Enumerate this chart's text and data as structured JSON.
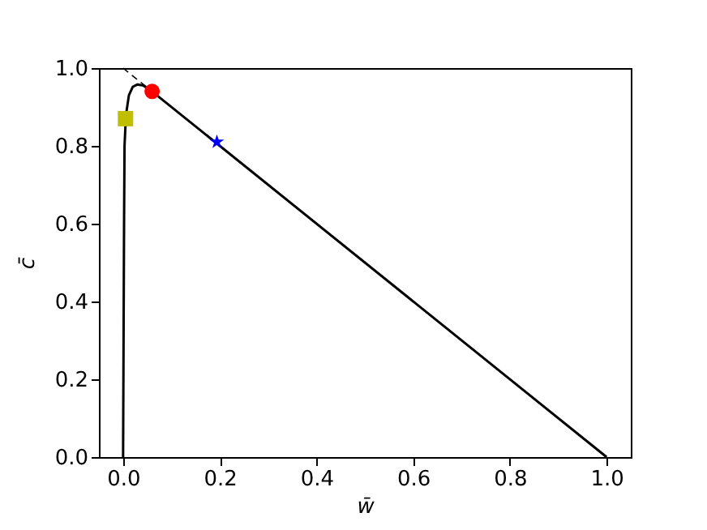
{
  "chart_data": {
    "type": "line",
    "xlabel": "w̄",
    "ylabel": "c̄",
    "xlim": [
      -0.05,
      1.05
    ],
    "ylim": [
      0,
      1.0
    ],
    "xticks": [
      {
        "value": 0,
        "label": "0.0"
      },
      0.2,
      0.4,
      0.6,
      0.8,
      {
        "value": 1,
        "label": "1.0"
      }
    ],
    "yticks": [
      {
        "value": 0,
        "label": "0.0"
      },
      0.2,
      0.4,
      0.6,
      0.8,
      {
        "value": 1,
        "label": "1.0"
      }
    ],
    "grid": false,
    "series": [
      {
        "color": "#000000",
        "line_style": "solid",
        "marker": "none",
        "x": [
          0,
          0.001,
          0.002,
          0.003,
          0.006,
          0.012,
          0.02,
          0.03,
          0.042,
          0.055,
          0.06,
          1.0
        ],
        "values": [
          0,
          0.3,
          0.6,
          0.8,
          0.88,
          0.93,
          0.952,
          0.958,
          0.955,
          0.945,
          0.94,
          0
        ]
      },
      {
        "color": "#000000",
        "line_style": "dashed",
        "marker": "none",
        "x": [
          0,
          0.06
        ],
        "values": [
          1.0,
          0.94
        ]
      },
      {
        "type": "scatter",
        "color": "#bfbf00",
        "marker": "square",
        "x": [
          0.005
        ],
        "values": [
          0.87
        ]
      },
      {
        "type": "scatter",
        "color": "#ff0000",
        "marker": "circle",
        "x": [
          0.06
        ],
        "values": [
          0.94
        ]
      },
      {
        "type": "scatter",
        "color": "#0000ff",
        "marker": "star",
        "x": [
          0.194
        ],
        "values": [
          0.81
        ]
      }
    ]
  }
}
